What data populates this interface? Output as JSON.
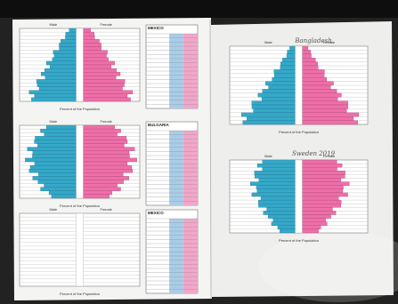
{
  "left_sheet": [
    {
      "male": "Male",
      "female": "Female",
      "axis_title": "Percent of the Population",
      "table_title": "MEXICO"
    },
    {
      "male": "Male",
      "female": "Female",
      "axis_title": "Percent of the Population",
      "table_title": "BULGARIA"
    },
    {
      "male": "Male",
      "female": "Female",
      "axis_title": "Percent of the Population",
      "table_title": "MEXICO"
    }
  ],
  "right_sheet": [
    {
      "handwritten": "Bangladesh",
      "male": "Male",
      "female": "Female",
      "axis_title": "Percent of the Population"
    },
    {
      "handwritten": "Sweden 2019",
      "male": "Male",
      "female": "Female",
      "axis_title": "Percent of the Population"
    }
  ]
}
